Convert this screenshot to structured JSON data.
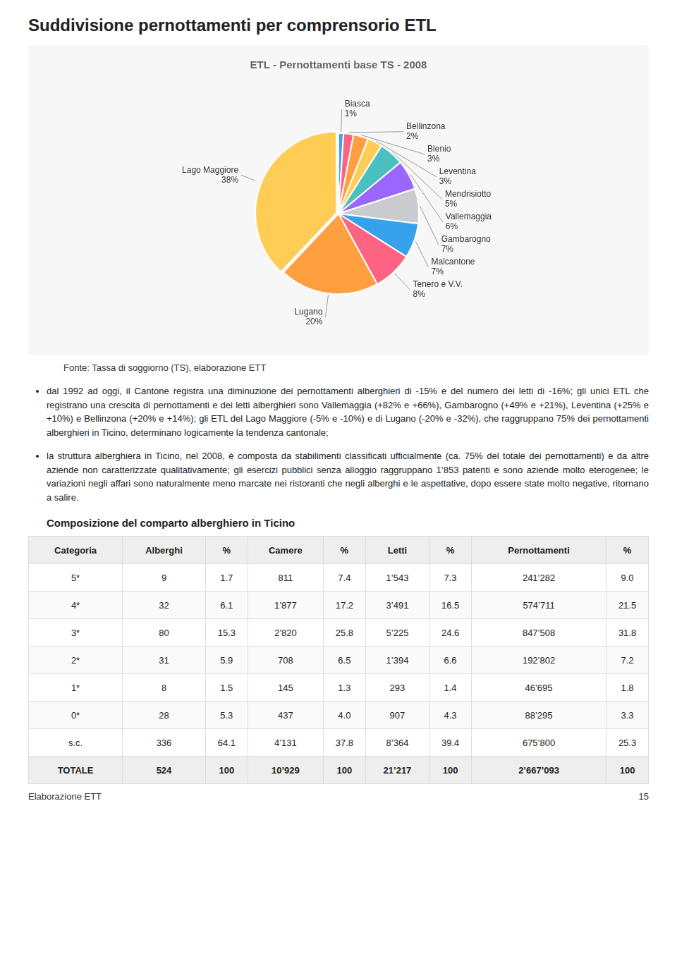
{
  "title": "Suddivisione pernottamenti per comprensorio ETL",
  "chart_data": {
    "type": "pie",
    "title": "ETL - Pernottamenti base TS - 2008",
    "categories": [
      "Biasca",
      "Bellinzona",
      "Blenio",
      "Leventina",
      "Mendrisiotto",
      "Vallemaggia",
      "Gambarogno",
      "Malcantone",
      "Tenero e V.V.",
      "Lugano",
      "Lago Maggiore"
    ],
    "values": [
      1,
      2,
      3,
      3,
      5,
      6,
      7,
      7,
      8,
      20,
      38
    ],
    "value_labels": [
      "1%",
      "2%",
      "3%",
      "3%",
      "5%",
      "6%",
      "7%",
      "7%",
      "8%",
      "20%",
      "38%"
    ],
    "data_labels": true
  },
  "source": "Fonte: Tassa di soggiorno (TS), elaborazione ETT",
  "bullets": [
    "dal 1992 ad oggi, il Cantone registra una diminuzione dei pernottamenti alberghieri di -15% e del numero dei letti di -16%; gli unici ETL che registrano una crescita di pernottamenti e dei letti alberghieri sono Vallemaggia (+82% e +66%), Gambarogno (+49% e +21%), Leventina (+25% e +10%) e Bellinzona (+20% e +14%); gli ETL del Lago Maggiore (-5% e -10%) e di Lugano (-20% e -32%), che raggruppano 75% dei pernottamenti alberghieri in Ticino, determinano logicamente la tendenza cantonale;",
    "la struttura alberghiera in Ticino, nel 2008, è composta da stabilimenti classificati ufficialmente (ca. 75% del totale dei pernottamenti) e da altre aziende non caratterizzate qualitativamente; gli esercizi pubblici senza alloggio raggruppano 1’853 patenti e sono aziende molto eterogenee; le variazioni negli affari sono naturalmente meno marcate nei ristoranti che negli alberghi e le aspettative, dopo essere state molto negative, ritornano  a salire."
  ],
  "table": {
    "title": "Composizione del comparto alberghiero in Ticino",
    "headers": [
      "Categoria",
      "Alberghi",
      "%",
      "Camere",
      "%",
      "Letti",
      "%",
      "Pernottamenti",
      "%"
    ],
    "rows": [
      [
        "5*",
        "9",
        "1.7",
        "811",
        "7.4",
        "1’543",
        "7.3",
        "241’282",
        "9.0"
      ],
      [
        "4*",
        "32",
        "6.1",
        "1’877",
        "17.2",
        "3’491",
        "16.5",
        "574’711",
        "21.5"
      ],
      [
        "3*",
        "80",
        "15.3",
        "2’820",
        "25.8",
        "5’225",
        "24.6",
        "847’508",
        "31.8"
      ],
      [
        "2*",
        "31",
        "5.9",
        "708",
        "6.5",
        "1’394",
        "6.6",
        "192’802",
        "7.2"
      ],
      [
        "1*",
        "8",
        "1.5",
        "145",
        "1.3",
        "293",
        "1.4",
        "46’695",
        "1.8"
      ],
      [
        "0*",
        "28",
        "5.3",
        "437",
        "4.0",
        "907",
        "4.3",
        "88’295",
        "3.3"
      ],
      [
        "s.c.",
        "336",
        "64.1",
        "4’131",
        "37.8",
        "8’364",
        "39.4",
        "675’800",
        "25.3"
      ],
      [
        "TOTALE",
        "524",
        "100",
        "10’929",
        "100",
        "21’217",
        "100",
        "2’667’093",
        "100"
      ]
    ],
    "footer": "Elaborazione ETT"
  },
  "page_number": "15"
}
